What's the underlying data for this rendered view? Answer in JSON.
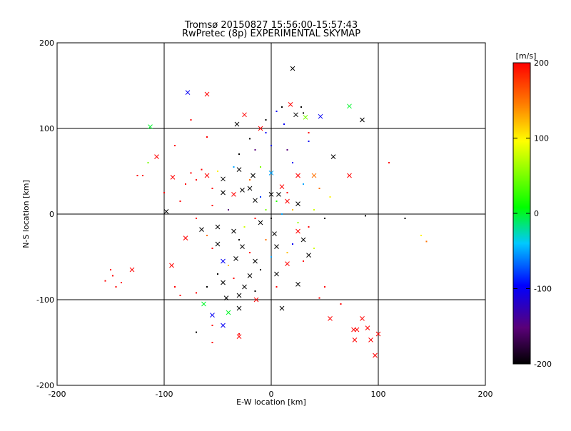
{
  "chart_data": {
    "type": "scatter",
    "title": "Tromsø 20150827 15:56:00-15:57:43",
    "subtitle": "RwPretec (8p) EXPERIMENTAL SKYMAP",
    "xlabel": "E-W location [km]",
    "ylabel": "N-S location [km]",
    "xlim": [
      -200,
      200
    ],
    "ylim": [
      -200,
      200
    ],
    "xticks": [
      "-200",
      "-100",
      "0",
      "100",
      "200"
    ],
    "yticks": [
      "-200",
      "-100",
      "0",
      "100",
      "200"
    ],
    "grid": true,
    "colorbar": {
      "label": "[m/s]",
      "range": [
        -200,
        200
      ],
      "ticks": [
        "200",
        "100",
        "0",
        "-100",
        "-200"
      ],
      "colormap": [
        "#000000",
        "#5a0078",
        "#0000ff",
        "#00c8ff",
        "#00ff00",
        "#ffff00",
        "#ff8000",
        "#ff0000"
      ]
    },
    "markers": {
      "x": "high-power detection",
      "dot": "low-power detection"
    },
    "points": [
      [
        20,
        170,
        -200,
        "x"
      ],
      [
        -78,
        142,
        -100,
        "x"
      ],
      [
        -60,
        140,
        200,
        "x"
      ],
      [
        18,
        128,
        200,
        "x"
      ],
      [
        73,
        126,
        0,
        "x"
      ],
      [
        -113,
        102,
        0,
        "x"
      ],
      [
        -32,
        105,
        -200,
        "x"
      ],
      [
        85,
        110,
        -200,
        "x"
      ],
      [
        -25,
        116,
        200,
        "x"
      ],
      [
        -10,
        100,
        200,
        "x"
      ],
      [
        46,
        114,
        -100,
        "x"
      ],
      [
        32,
        113,
        50,
        "x"
      ],
      [
        23,
        116,
        -200,
        "x"
      ],
      [
        -107,
        67,
        200,
        "x"
      ],
      [
        58,
        67,
        -200,
        "x"
      ],
      [
        -92,
        43,
        200,
        "x"
      ],
      [
        -30,
        52,
        -200,
        "x"
      ],
      [
        -17,
        45,
        -200,
        "x"
      ],
      [
        0,
        48,
        -50,
        "x"
      ],
      [
        25,
        45,
        200,
        "x"
      ],
      [
        40,
        45,
        150,
        "x"
      ],
      [
        73,
        45,
        200,
        "x"
      ],
      [
        -60,
        45,
        200,
        "x"
      ],
      [
        -45,
        41,
        -200,
        "x"
      ],
      [
        -27,
        28,
        -200,
        "x"
      ],
      [
        -20,
        30,
        -200,
        "x"
      ],
      [
        10,
        32,
        200,
        "x"
      ],
      [
        -45,
        25,
        -200,
        "x"
      ],
      [
        -35,
        23,
        200,
        "x"
      ],
      [
        0,
        23,
        -200,
        "x"
      ],
      [
        7,
        23,
        -200,
        "x"
      ],
      [
        -15,
        16,
        -200,
        "x"
      ],
      [
        15,
        15,
        200,
        "x"
      ],
      [
        25,
        12,
        -200,
        "x"
      ],
      [
        -98,
        3,
        -200,
        "x"
      ],
      [
        -50,
        -15,
        -200,
        "x"
      ],
      [
        -35,
        -20,
        -200,
        "x"
      ],
      [
        -10,
        -10,
        -200,
        "x"
      ],
      [
        3,
        -23,
        -200,
        "x"
      ],
      [
        25,
        -20,
        200,
        "x"
      ],
      [
        -65,
        -18,
        -200,
        "x"
      ],
      [
        -80,
        -28,
        200,
        "x"
      ],
      [
        -50,
        -35,
        -200,
        "x"
      ],
      [
        -27,
        -38,
        -200,
        "x"
      ],
      [
        5,
        -38,
        -200,
        "x"
      ],
      [
        30,
        -30,
        -200,
        "x"
      ],
      [
        -45,
        -55,
        -100,
        "x"
      ],
      [
        -33,
        -52,
        -200,
        "x"
      ],
      [
        -15,
        -55,
        -200,
        "x"
      ],
      [
        15,
        -58,
        200,
        "x"
      ],
      [
        35,
        -48,
        -200,
        "x"
      ],
      [
        -93,
        -60,
        200,
        "x"
      ],
      [
        -130,
        -65,
        200,
        "x"
      ],
      [
        -20,
        -72,
        -200,
        "x"
      ],
      [
        5,
        -70,
        -200,
        "x"
      ],
      [
        -45,
        -80,
        -200,
        "x"
      ],
      [
        -25,
        -85,
        -200,
        "x"
      ],
      [
        25,
        -82,
        -200,
        "x"
      ],
      [
        -42,
        -98,
        -200,
        "x"
      ],
      [
        -30,
        -95,
        -200,
        "x"
      ],
      [
        -14,
        -100,
        200,
        "x"
      ],
      [
        -63,
        -105,
        0,
        "x"
      ],
      [
        -30,
        -110,
        -200,
        "x"
      ],
      [
        -40,
        -115,
        0,
        "x"
      ],
      [
        -55,
        -118,
        -100,
        "x"
      ],
      [
        -45,
        -130,
        -100,
        "x"
      ],
      [
        -30,
        -143,
        200,
        "x"
      ],
      [
        10,
        -110,
        -200,
        "x"
      ],
      [
        55,
        -122,
        200,
        "x"
      ],
      [
        85,
        -122,
        200,
        "x"
      ],
      [
        80,
        -135,
        200,
        "x"
      ],
      [
        77,
        -135,
        200,
        "x"
      ],
      [
        90,
        -133,
        200,
        "x"
      ],
      [
        100,
        -140,
        200,
        "x"
      ],
      [
        78,
        -147,
        200,
        "x"
      ],
      [
        93,
        -147,
        200,
        "x"
      ],
      [
        97,
        -165,
        200,
        "x"
      ],
      [
        -120,
        45,
        200,
        "dot"
      ],
      [
        -125,
        45,
        200,
        "dot"
      ],
      [
        -115,
        60,
        50,
        "dot"
      ],
      [
        -150,
        -65,
        200,
        "dot"
      ],
      [
        -148,
        -72,
        200,
        "dot"
      ],
      [
        -155,
        -78,
        200,
        "dot"
      ],
      [
        -145,
        -85,
        200,
        "dot"
      ],
      [
        -140,
        -80,
        200,
        "dot"
      ],
      [
        -80,
        35,
        200,
        "dot"
      ],
      [
        -75,
        48,
        200,
        "dot"
      ],
      [
        -70,
        40,
        200,
        "dot"
      ],
      [
        -65,
        52,
        200,
        "dot"
      ],
      [
        -55,
        30,
        200,
        "dot"
      ],
      [
        -55,
        -40,
        200,
        "dot"
      ],
      [
        -60,
        -85,
        -200,
        "dot"
      ],
      [
        -70,
        -92,
        200,
        "dot"
      ],
      [
        -85,
        -95,
        200,
        "dot"
      ],
      [
        -90,
        -85,
        200,
        "dot"
      ],
      [
        125,
        -5,
        -200,
        "dot"
      ],
      [
        140,
        -25,
        100,
        "dot"
      ],
      [
        145,
        -32,
        150,
        "dot"
      ],
      [
        110,
        60,
        200,
        "dot"
      ],
      [
        88,
        -2,
        -200,
        "dot"
      ],
      [
        50,
        -85,
        200,
        "dot"
      ],
      [
        45,
        -98,
        200,
        "dot"
      ],
      [
        65,
        -105,
        200,
        "dot"
      ],
      [
        -55,
        -130,
        200,
        "dot"
      ],
      [
        -55,
        -150,
        200,
        "dot"
      ],
      [
        -30,
        -140,
        200,
        "dot"
      ],
      [
        -70,
        -138,
        -200,
        "dot"
      ],
      [
        35,
        95,
        200,
        "dot"
      ],
      [
        28,
        125,
        -200,
        "dot"
      ],
      [
        30,
        118,
        -200,
        "dot"
      ],
      [
        10,
        125,
        -200,
        "dot"
      ],
      [
        5,
        120,
        -100,
        "dot"
      ],
      [
        -5,
        110,
        -200,
        "dot"
      ],
      [
        12,
        105,
        -100,
        "dot"
      ],
      [
        -5,
        95,
        -100,
        "dot"
      ],
      [
        35,
        85,
        -100,
        "dot"
      ],
      [
        -20,
        88,
        -200,
        "dot"
      ],
      [
        -60,
        90,
        200,
        "dot"
      ],
      [
        -75,
        110,
        200,
        "dot"
      ],
      [
        -90,
        80,
        200,
        "dot"
      ],
      [
        -100,
        25,
        200,
        "dot"
      ],
      [
        -85,
        15,
        200,
        "dot"
      ],
      [
        -70,
        -5,
        200,
        "dot"
      ],
      [
        -60,
        -25,
        150,
        "dot"
      ],
      [
        -40,
        -60,
        120,
        "dot"
      ],
      [
        -30,
        70,
        -200,
        "dot"
      ],
      [
        -15,
        75,
        -150,
        "dot"
      ],
      [
        0,
        80,
        -100,
        "dot"
      ],
      [
        15,
        75,
        -150,
        "dot"
      ],
      [
        20,
        60,
        -100,
        "dot"
      ],
      [
        -10,
        55,
        50,
        "dot"
      ],
      [
        -35,
        55,
        -50,
        "dot"
      ],
      [
        -50,
        50,
        100,
        "dot"
      ],
      [
        -20,
        40,
        150,
        "dot"
      ],
      [
        30,
        35,
        -50,
        "dot"
      ],
      [
        45,
        30,
        150,
        "dot"
      ],
      [
        55,
        20,
        100,
        "dot"
      ],
      [
        40,
        5,
        80,
        "dot"
      ],
      [
        50,
        -5,
        -200,
        "dot"
      ],
      [
        35,
        -15,
        200,
        "dot"
      ],
      [
        20,
        -35,
        -100,
        "dot"
      ],
      [
        -5,
        -30,
        150,
        "dot"
      ],
      [
        -25,
        -15,
        80,
        "dot"
      ],
      [
        -40,
        5,
        -150,
        "dot"
      ],
      [
        -55,
        10,
        200,
        "dot"
      ],
      [
        -5,
        5,
        50,
        "dot"
      ],
      [
        10,
        0,
        -50,
        "dot"
      ],
      [
        20,
        5,
        120,
        "dot"
      ],
      [
        -15,
        -5,
        200,
        "dot"
      ],
      [
        0,
        -5,
        -200,
        "dot"
      ],
      [
        5,
        15,
        20,
        "dot"
      ],
      [
        15,
        25,
        200,
        "dot"
      ],
      [
        -10,
        20,
        -80,
        "dot"
      ],
      [
        25,
        -10,
        60,
        "dot"
      ],
      [
        -30,
        -30,
        -200,
        "dot"
      ],
      [
        -20,
        -45,
        200,
        "dot"
      ],
      [
        0,
        -50,
        -50,
        "dot"
      ],
      [
        15,
        -45,
        120,
        "dot"
      ],
      [
        30,
        -55,
        200,
        "dot"
      ],
      [
        -10,
        -65,
        -200,
        "dot"
      ],
      [
        5,
        -85,
        200,
        "dot"
      ],
      [
        -15,
        -90,
        -200,
        "dot"
      ],
      [
        -35,
        -75,
        200,
        "dot"
      ],
      [
        -50,
        -70,
        -200,
        "dot"
      ],
      [
        40,
        -40,
        80,
        "dot"
      ]
    ]
  }
}
